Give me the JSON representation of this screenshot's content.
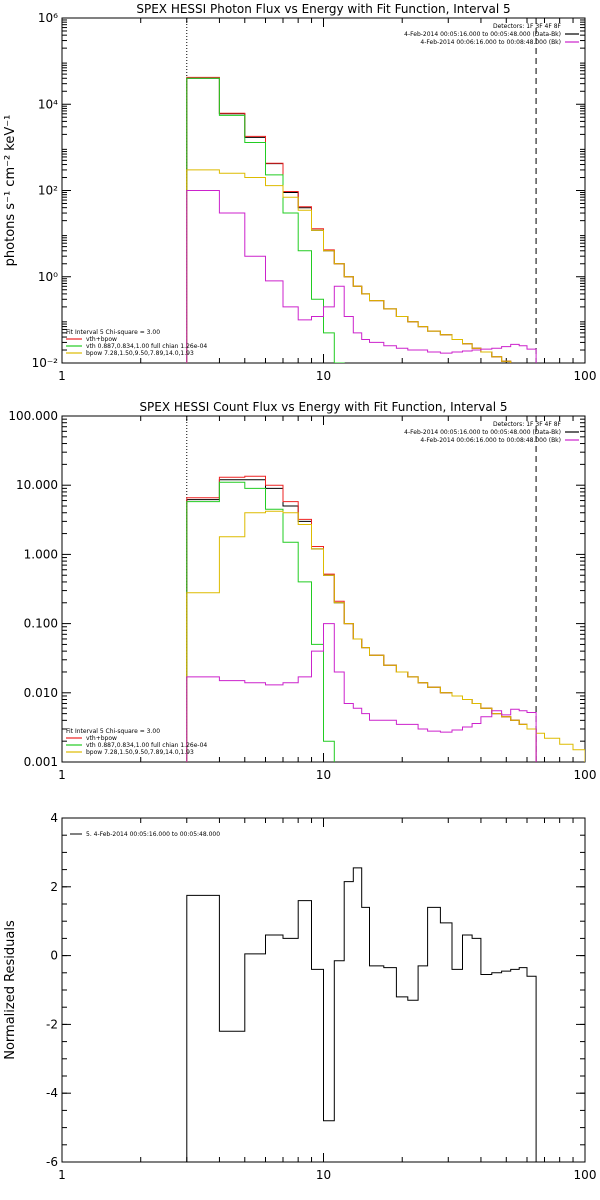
{
  "colors": {
    "data": "#000000",
    "total": "#ee2222",
    "vth": "#22cc22",
    "bpow": "#ddbb00",
    "bkg": "#cc22cc"
  },
  "chart_data": [
    {
      "id": "photon",
      "type": "line",
      "title": "SPEX HESSI Photon Flux vs Energy with Fit Function, Interval 5",
      "xlabel": "",
      "ylabel": "photons s⁻¹ cm⁻² keV⁻¹",
      "xscale": "log",
      "yscale": "log",
      "xlim": [
        1,
        100
      ],
      "ylim": [
        0.01,
        1000000
      ],
      "xticks": [
        {
          "v": 1,
          "t": "1"
        },
        {
          "v": 10,
          "t": "10"
        },
        {
          "v": 100,
          "t": "100"
        }
      ],
      "yticks": [
        {
          "v": 0.01,
          "t": "10⁻²"
        },
        {
          "v": 1,
          "t": "10⁰"
        },
        {
          "v": 100,
          "t": "10²"
        },
        {
          "v": 10000,
          "t": "10⁴"
        },
        {
          "v": 1000000,
          "t": "10⁶"
        }
      ],
      "vlines": [
        {
          "x": 3,
          "style": "dotted"
        },
        {
          "x": 65,
          "style": "dashed"
        }
      ],
      "legend_topright": [
        "Detectors: 1F 3F 4F 8F",
        "4-Feb-2014 00:05:16.000 to 00:05:48.000 (Data-Bk)",
        "4-Feb-2014 00:06:16.000 to 00:08:48.000 (Bk)"
      ],
      "legend_topright_colors": [
        "",
        "data",
        "bkg"
      ],
      "legend_bottomleft": [
        "Fit Interval 5   Chi-square = 3.00",
        "vth+bpow",
        "vth 0.887,0.834,1.00  full chian 1.26e-04",
        "bpow 7.28,1.50,9.50,7.89,14.0,1.93"
      ],
      "legend_bottomleft_colors": [
        "",
        "total",
        "vth",
        "bpow"
      ],
      "series": [
        {
          "name": "Data-Bk",
          "color": "data",
          "edges": [
            3,
            4,
            5,
            6,
            7,
            8,
            9,
            10,
            11,
            12,
            13,
            14,
            15,
            17,
            19,
            21,
            23,
            25,
            28,
            31,
            34,
            37,
            40,
            44,
            48,
            52,
            56,
            60,
            65
          ],
          "values": [
            40000,
            6000,
            1700,
            420,
            90,
            40,
            12,
            4,
            2,
            1,
            0.6,
            0.4,
            0.28,
            0.18,
            0.12,
            0.09,
            0.07,
            0.055,
            0.045,
            0.035,
            0.028,
            0.022,
            0.018,
            0.014,
            0.011,
            0.009,
            0.007,
            0.006
          ]
        },
        {
          "name": "vth+bpow",
          "color": "total",
          "edges": [
            3,
            4,
            5,
            6,
            7,
            8,
            9,
            10,
            11,
            12,
            13,
            14,
            15,
            17,
            19,
            21,
            23,
            25,
            28,
            31,
            34,
            37,
            40,
            44,
            48,
            52,
            56,
            60,
            65
          ],
          "values": [
            42000,
            6200,
            1800,
            430,
            95,
            42,
            13,
            4.2,
            2,
            1,
            0.6,
            0.4,
            0.28,
            0.18,
            0.12,
            0.09,
            0.07,
            0.055,
            0.045,
            0.035,
            0.028,
            0.022,
            0.018,
            0.014,
            0.011,
            0.009,
            0.007,
            0.006
          ]
        },
        {
          "name": "vth",
          "color": "vth",
          "edges": [
            3,
            4,
            5,
            6,
            7,
            8,
            9,
            10,
            11,
            12
          ],
          "values": [
            40000,
            5500,
            1300,
            230,
            30,
            4,
            0.3,
            0.05,
            0.01
          ]
        },
        {
          "name": "bpow",
          "color": "bpow",
          "edges": [
            3,
            4,
            5,
            6,
            7,
            8,
            9,
            10,
            11,
            12,
            13,
            14,
            15,
            17,
            19,
            21,
            23,
            25,
            28,
            31,
            34,
            37,
            40,
            44,
            48,
            52,
            56,
            60,
            65,
            70,
            80
          ],
          "values": [
            300,
            250,
            200,
            130,
            70,
            35,
            12,
            4,
            2,
            1,
            0.6,
            0.4,
            0.28,
            0.18,
            0.12,
            0.09,
            0.07,
            0.055,
            0.045,
            0.035,
            0.028,
            0.022,
            0.018,
            0.014,
            0.011,
            0.009,
            0.007,
            0.006,
            0.005,
            0.004
          ]
        },
        {
          "name": "Bk",
          "color": "bkg",
          "edges": [
            3,
            4,
            5,
            6,
            7,
            8,
            9,
            10,
            11,
            12,
            13,
            14,
            15,
            17,
            19,
            21,
            23,
            25,
            28,
            31,
            34,
            37,
            40,
            44,
            48,
            52,
            56,
            60,
            65
          ],
          "values": [
            100,
            30,
            3,
            0.8,
            0.2,
            0.1,
            0.12,
            0.2,
            0.6,
            0.12,
            0.05,
            0.035,
            0.03,
            0.025,
            0.022,
            0.02,
            0.02,
            0.018,
            0.017,
            0.018,
            0.019,
            0.02,
            0.021,
            0.022,
            0.024,
            0.027,
            0.025,
            0.021
          ]
        }
      ]
    },
    {
      "id": "count",
      "type": "line",
      "title": "SPEX HESSI Count Flux vs Energy with Fit Function, Interval 5",
      "xlabel": "",
      "ylabel": "",
      "xscale": "log",
      "yscale": "log",
      "xlim": [
        1,
        100
      ],
      "ylim": [
        0.001,
        100
      ],
      "xticks": [
        {
          "v": 1,
          "t": "1"
        },
        {
          "v": 10,
          "t": "10"
        },
        {
          "v": 100,
          "t": "100"
        }
      ],
      "yticks": [
        {
          "v": 0.001,
          "t": "0.001"
        },
        {
          "v": 0.01,
          "t": "0.010"
        },
        {
          "v": 0.1,
          "t": "0.100"
        },
        {
          "v": 1,
          "t": "1.000"
        },
        {
          "v": 10,
          "t": "10.000"
        },
        {
          "v": 100,
          "t": "100.000"
        }
      ],
      "vlines": [
        {
          "x": 3,
          "style": "dotted"
        },
        {
          "x": 65,
          "style": "dashed"
        }
      ],
      "legend_topright": [
        "Detectors: 1F 3F 4F 8F",
        "4-Feb-2014 00:05:16.000 to 00:05:48.000 (Data-Bk)",
        "4-Feb-2014 00:06:16.000 to 00:08:48.000 (Bk)"
      ],
      "legend_topright_colors": [
        "",
        "data",
        "bkg"
      ],
      "legend_bottomleft": [
        "Fit Interval 5   Chi-square = 3.00",
        "vth+bpow",
        "vth 0.887,0.834,1.00  full chian 1.26e-04",
        "bpow 7.28,1.50,9.50,7.89,14.0,1.93"
      ],
      "legend_bottomleft_colors": [
        "",
        "total",
        "vth",
        "bpow"
      ],
      "series": [
        {
          "name": "Data-Bk",
          "color": "data",
          "edges": [
            3,
            4,
            5,
            6,
            7,
            8,
            9,
            10,
            11,
            12,
            13,
            14,
            15,
            17,
            19,
            21,
            23,
            25,
            28,
            31,
            34,
            37,
            40,
            44,
            48,
            52,
            56,
            60,
            65
          ],
          "values": [
            6.2,
            12,
            12,
            9,
            5,
            3,
            1.2,
            0.5,
            0.2,
            0.1,
            0.06,
            0.045,
            0.035,
            0.025,
            0.02,
            0.017,
            0.014,
            0.012,
            0.01,
            0.009,
            0.008,
            0.007,
            0.006,
            0.005,
            0.0045,
            0.004,
            0.0035,
            0.003
          ]
        },
        {
          "name": "vth+bpow",
          "color": "total",
          "edges": [
            3,
            4,
            5,
            6,
            7,
            8,
            9,
            10,
            11,
            12,
            13,
            14,
            15,
            17,
            19,
            21,
            23,
            25,
            28,
            31,
            34,
            37,
            40,
            44,
            48,
            52,
            56,
            60,
            65
          ],
          "values": [
            6.6,
            13,
            13.5,
            10,
            5.8,
            3.2,
            1.3,
            0.52,
            0.21,
            0.1,
            0.06,
            0.045,
            0.035,
            0.025,
            0.02,
            0.017,
            0.014,
            0.012,
            0.01,
            0.009,
            0.008,
            0.007,
            0.006,
            0.005,
            0.0045,
            0.004,
            0.0035,
            0.003
          ]
        },
        {
          "name": "vth",
          "color": "vth",
          "edges": [
            3,
            4,
            5,
            6,
            7,
            8,
            9,
            10,
            11
          ],
          "values": [
            5.8,
            11,
            9,
            4.5,
            1.5,
            0.4,
            0.05,
            0.002
          ]
        },
        {
          "name": "bpow",
          "color": "bpow",
          "edges": [
            3,
            4,
            5,
            6,
            7,
            8,
            9,
            10,
            11,
            12,
            13,
            14,
            15,
            17,
            19,
            21,
            23,
            25,
            28,
            31,
            34,
            37,
            40,
            44,
            48,
            52,
            56,
            60,
            65,
            70,
            80,
            90,
            100
          ],
          "values": [
            0.28,
            1.8,
            4,
            4.2,
            4,
            2.7,
            1.2,
            0.5,
            0.2,
            0.1,
            0.06,
            0.045,
            0.035,
            0.025,
            0.02,
            0.017,
            0.014,
            0.012,
            0.01,
            0.009,
            0.008,
            0.007,
            0.006,
            0.005,
            0.0045,
            0.004,
            0.0035,
            0.003,
            0.0026,
            0.0022,
            0.0018,
            0.0015
          ]
        },
        {
          "name": "Bk",
          "color": "bkg",
          "edges": [
            3,
            4,
            5,
            6,
            7,
            8,
            9,
            10,
            11,
            12,
            13,
            14,
            15,
            17,
            19,
            21,
            23,
            25,
            28,
            31,
            34,
            37,
            40,
            44,
            48,
            52,
            56,
            60,
            65
          ],
          "values": [
            0.017,
            0.015,
            0.014,
            0.013,
            0.014,
            0.017,
            0.04,
            0.1,
            0.02,
            0.007,
            0.006,
            0.005,
            0.004,
            0.004,
            0.0035,
            0.0035,
            0.003,
            0.0028,
            0.0027,
            0.0029,
            0.0032,
            0.0036,
            0.0045,
            0.0055,
            0.0048,
            0.0058,
            0.0055,
            0.0052
          ]
        }
      ]
    },
    {
      "id": "residuals",
      "type": "line",
      "title": "",
      "xlabel": "",
      "ylabel": "Normalized Residuals",
      "xscale": "log",
      "yscale": "linear",
      "xlim": [
        1,
        100
      ],
      "ylim": [
        -6,
        4
      ],
      "xticks": [
        {
          "v": 1,
          "t": "1"
        },
        {
          "v": 10,
          "t": "10"
        },
        {
          "v": 100,
          "t": "100"
        }
      ],
      "yticks": [
        {
          "v": -6,
          "t": "-6"
        },
        {
          "v": -4,
          "t": "-4"
        },
        {
          "v": -2,
          "t": "-2"
        },
        {
          "v": 0,
          "t": "0"
        },
        {
          "v": 2,
          "t": "2"
        },
        {
          "v": 4,
          "t": "4"
        }
      ],
      "vlines": [],
      "legend_topleft": "5.  4-Feb-2014 00:05:16.000 to 00:05:48.000",
      "series": [
        {
          "name": "5.  4-Feb-2014 00:05:16.000 to 00:05:48.000",
          "color": "data",
          "edges": [
            3,
            4,
            5,
            6,
            7,
            8,
            9,
            10,
            11,
            12,
            13,
            14,
            15,
            17,
            19,
            21,
            23,
            25,
            28,
            31,
            34,
            37,
            40,
            44,
            48,
            52,
            56,
            60,
            65
          ],
          "values": [
            1.75,
            -2.2,
            0.05,
            0.6,
            0.5,
            1.6,
            -0.4,
            -4.8,
            -0.15,
            2.15,
            2.55,
            1.4,
            -0.3,
            -0.35,
            -1.2,
            -1.3,
            -0.3,
            1.4,
            0.95,
            -0.4,
            0.6,
            0.5,
            -0.55,
            -0.5,
            -0.45,
            -0.4,
            -0.35,
            -0.6
          ]
        }
      ]
    }
  ]
}
